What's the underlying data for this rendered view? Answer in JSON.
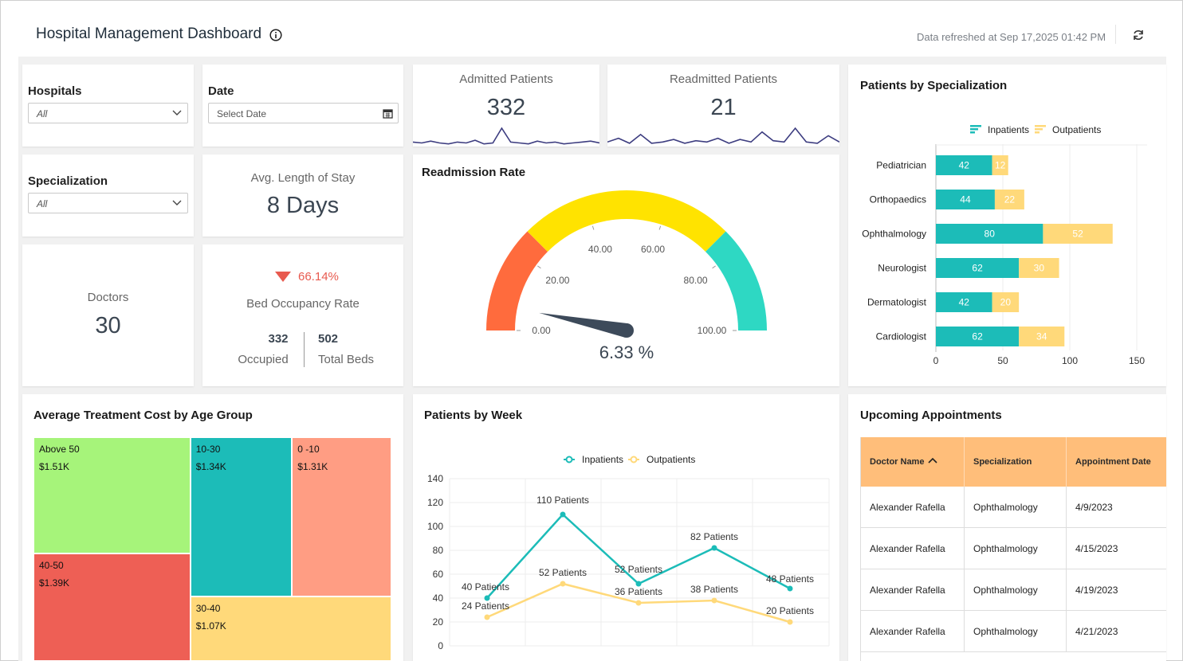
{
  "header": {
    "title": "Hospital Management Dashboard",
    "refresh_text": "Data refreshed at Sep 17,2025 01:42 PM"
  },
  "filters": {
    "hospitals": {
      "label": "Hospitals",
      "value": "All"
    },
    "date": {
      "label": "Date",
      "placeholder": "Select Date"
    },
    "specialization": {
      "label": "Specialization",
      "value": "All"
    }
  },
  "kpis": {
    "admitted": {
      "label": "Admitted Patients",
      "value": "332",
      "spark": [
        4,
        3,
        5,
        3,
        2,
        4,
        3,
        6,
        2,
        3,
        19,
        4,
        3,
        2,
        5,
        3,
        4,
        2,
        3,
        4,
        5,
        3
      ]
    },
    "readmitted": {
      "label": "Readmitted Patients",
      "value": "21",
      "spark": [
        3,
        6,
        2,
        9,
        2,
        3,
        5,
        2,
        4,
        3,
        6,
        2,
        5,
        3,
        11,
        4,
        3,
        14,
        3,
        2,
        8,
        3
      ]
    },
    "avg_stay": {
      "label": "Avg. Length of Stay",
      "value": "8 Days"
    },
    "doctors": {
      "label": "Doctors",
      "value": "30"
    },
    "bed_occupancy": {
      "label": "Bed Occupancy Rate",
      "change": "66.14%",
      "occupied_value": "332",
      "occupied_label": "Occupied",
      "total_value": "502",
      "total_label": "Total Beds",
      "down_color": "#e85a4f"
    }
  },
  "readmission": {
    "title": "Readmission Rate",
    "value": 6.33,
    "value_label": "6.33 %",
    "min": 0,
    "max": 100,
    "ticks": [
      "0.00",
      "20.00",
      "40.00",
      "60.00",
      "80.00",
      "100.00"
    ],
    "bands": [
      {
        "from": 0,
        "to": 25,
        "color": "#ff6b3d"
      },
      {
        "from": 25,
        "to": 75,
        "color": "#ffe300"
      },
      {
        "from": 75,
        "to": 100,
        "color": "#2ed8c3"
      }
    ]
  },
  "specialization_chart": {
    "title": "Patients by Specialization",
    "chart_data": {
      "type": "bar",
      "orientation": "horizontal",
      "stacked": true,
      "categories": [
        "Pediatrician",
        "Orthopaedics",
        "Ophthalmology",
        "Neurologist",
        "Dermatologist",
        "Cardiologist"
      ],
      "series": [
        {
          "name": "Inpatients",
          "values": [
            42,
            44,
            80,
            62,
            42,
            62
          ],
          "color": "#1cbcb8"
        },
        {
          "name": "Outpatients",
          "values": [
            12,
            22,
            52,
            30,
            20,
            34
          ],
          "color": "#ffd97a"
        }
      ],
      "xlim": [
        0,
        150
      ],
      "xticks": [
        "0",
        "50",
        "100",
        "150"
      ],
      "legend": "top"
    }
  },
  "treemap": {
    "title": "Average Treatment Cost by Age Group",
    "chart_data": {
      "type": "treemap",
      "items": [
        {
          "label": "Above 50",
          "value_label": "$1.51K",
          "value": 1.51,
          "color": "#a6f47a"
        },
        {
          "label": "40-50",
          "value_label": "$1.39K",
          "value": 1.39,
          "color": "#ee5f55"
        },
        {
          "label": "10-30",
          "value_label": "$1.34K",
          "value": 1.34,
          "color": "#1cbcb8"
        },
        {
          "label": "0 -10",
          "value_label": "$1.31K",
          "value": 1.31,
          "color": "#ff9d83"
        },
        {
          "label": "30-40",
          "value_label": "$1.07K",
          "value": 1.07,
          "color": "#ffd97a"
        }
      ]
    }
  },
  "weekly": {
    "title": "Patients by Week",
    "chart_data": {
      "type": "line",
      "x": [
        1,
        2,
        3,
        4,
        5
      ],
      "series": [
        {
          "name": "Inpatients",
          "values": [
            40,
            110,
            52,
            82,
            48
          ],
          "labels": [
            "40 Patients",
            "110 Patients",
            "52 Patients",
            "82 Patients",
            "48 Patients"
          ],
          "color": "#1cbcb8"
        },
        {
          "name": "Outpatients",
          "values": [
            24,
            52,
            36,
            38,
            20
          ],
          "labels": [
            "24 Patients",
            "52 Patients",
            "36 Patients",
            "38 Patients",
            "20 Patients"
          ],
          "color": "#ffd97a"
        }
      ],
      "ylim": [
        0,
        140
      ],
      "yticks": [
        "0",
        "20",
        "40",
        "60",
        "80",
        "100",
        "120",
        "140"
      ],
      "legend": "top"
    }
  },
  "appointments": {
    "title": "Upcoming Appointments",
    "columns": [
      "Doctor Name",
      "Specialization",
      "Appointment Date"
    ],
    "header_color": "#ffbe7a",
    "rows": [
      [
        "Alexander Rafella",
        "Ophthalmology",
        "4/9/2023"
      ],
      [
        "Alexander Rafella",
        "Ophthalmology",
        "4/15/2023"
      ],
      [
        "Alexander Rafella",
        "Ophthalmology",
        "4/19/2023"
      ],
      [
        "Alexander Rafella",
        "Ophthalmology",
        "4/21/2023"
      ]
    ]
  }
}
